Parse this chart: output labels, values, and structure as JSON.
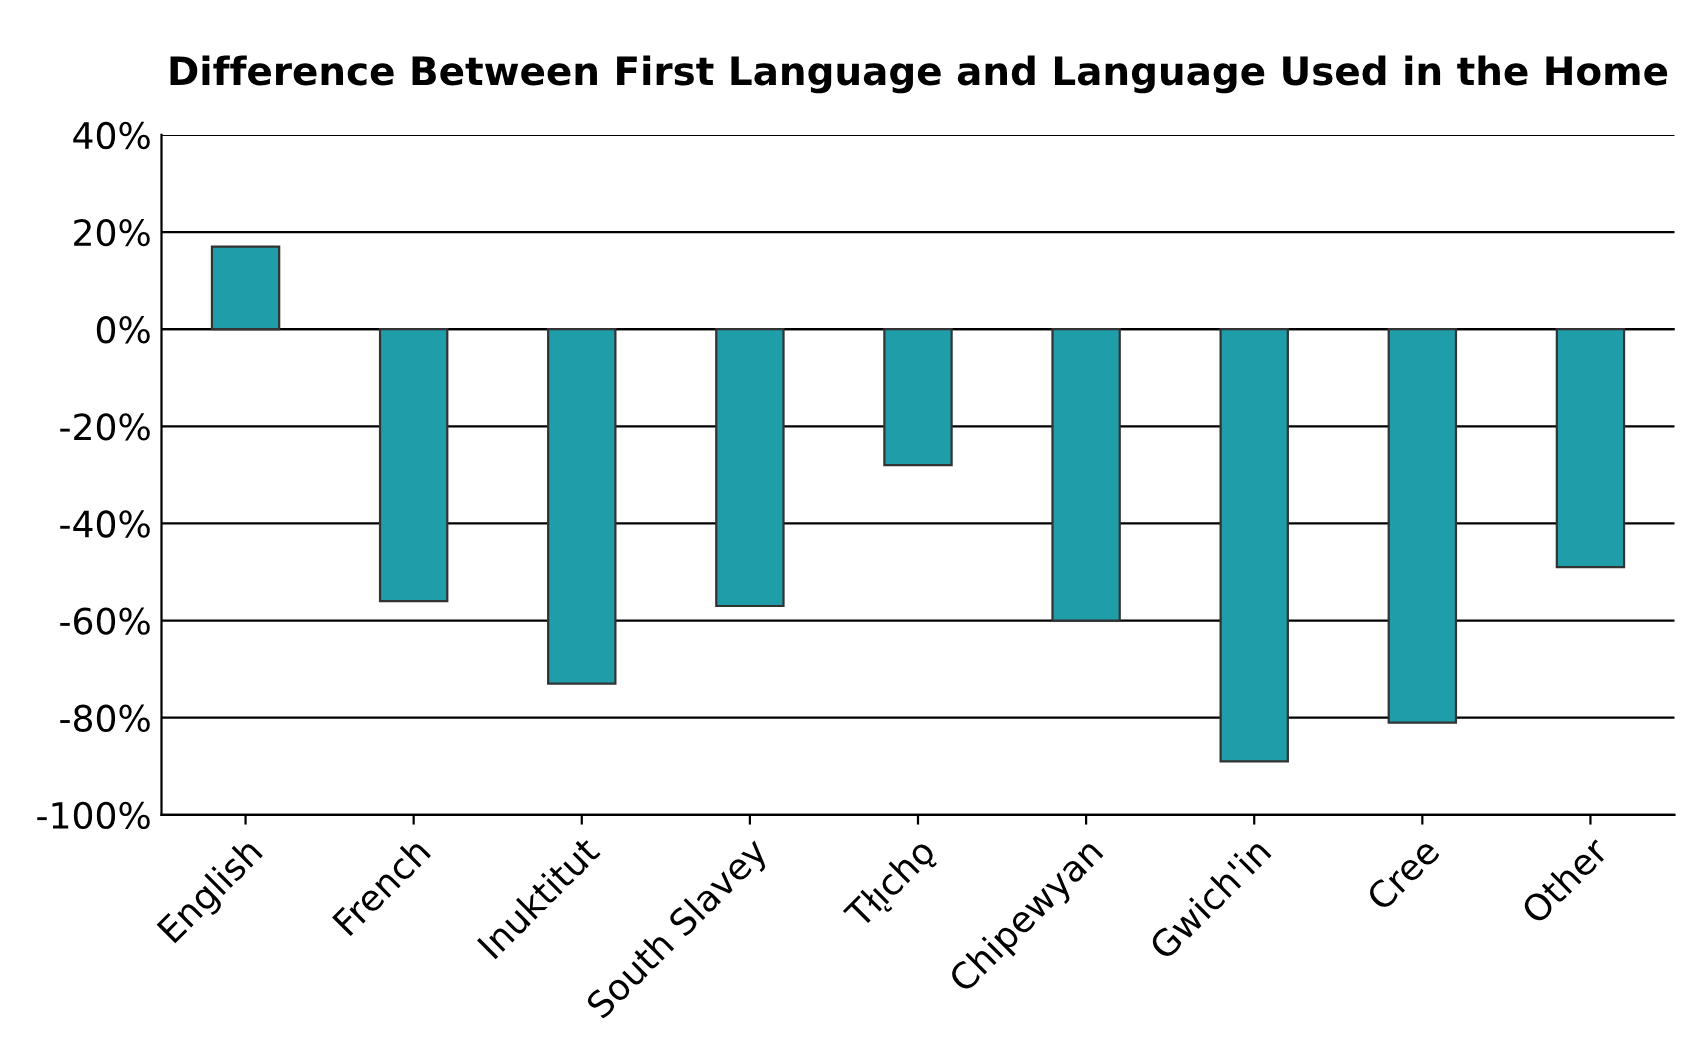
{
  "chart_data": {
    "type": "bar",
    "title": "Difference Between First Language and Language Used in the Home",
    "categories": [
      "English",
      "French",
      "Inuktitut",
      "South Slavey",
      "Tłı̨chǫ",
      "Chipewyan",
      "Gwich'in",
      "Cree",
      "Other"
    ],
    "values": [
      17,
      -56,
      -73,
      -57,
      -28,
      -60,
      -89,
      -81,
      -49
    ],
    "color": "#1f9eaa",
    "ylim": [
      -100,
      40
    ],
    "yticks": [
      {
        "value": -100,
        "label": "-100%"
      },
      {
        "value": -80,
        "label": "-80%"
      },
      {
        "value": -60,
        "label": "-60%"
      },
      {
        "value": -40,
        "label": "-40%"
      },
      {
        "value": -20,
        "label": "-20%"
      },
      {
        "value": 0,
        "label": "0%"
      },
      {
        "value": 20,
        "label": "20%"
      },
      {
        "value": 40,
        "label": "40%"
      }
    ],
    "grid": "y"
  }
}
